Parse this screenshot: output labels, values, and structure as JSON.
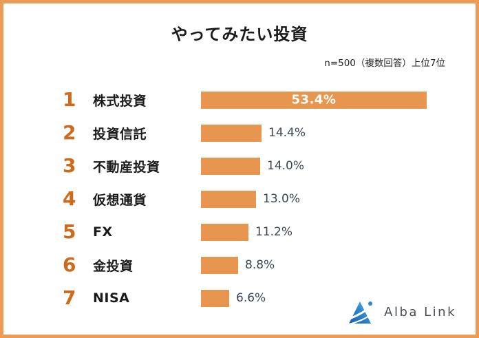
{
  "frame": {
    "border_color": "#EB9B55",
    "background": "#FFFFFF"
  },
  "header": {
    "title": "やってみたい投資",
    "note": "n=500（複数回答）上位7位"
  },
  "brand": {
    "name": "Alba Link",
    "logo_icon": "blue-triangle-swoosh",
    "logo_colors": {
      "dark_blue": "#1A5DAB",
      "light_blue": "#4AA8E8"
    }
  },
  "chart_data": {
    "type": "bar",
    "orientation": "horizontal",
    "title": "やってみたい投資",
    "subtitle": "n=500（複数回答）上位7位",
    "unit": "%",
    "grid": false,
    "legend": false,
    "xlim": [
      0,
      55
    ],
    "categories": [
      "株式投資",
      "投資信託",
      "不動産投資",
      "仮想通貨",
      "FX",
      "金投資",
      "NISA"
    ],
    "values": [
      53.4,
      14.4,
      14.0,
      13.0,
      11.2,
      8.8,
      6.6
    ],
    "bar_color": "#E8964F",
    "rank_color": "#CE6A1E",
    "value_color": "#3C4654",
    "value_color_inside_bar": "#FFFFFF",
    "rows": [
      {
        "rank": "1",
        "label": "株式投資",
        "value": 53.4,
        "value_label": "53.4%"
      },
      {
        "rank": "2",
        "label": "投資信託",
        "value": 14.4,
        "value_label": "14.4%"
      },
      {
        "rank": "3",
        "label": "不動産投資",
        "value": 14.0,
        "value_label": "14.0%"
      },
      {
        "rank": "4",
        "label": "仮想通貨",
        "value": 13.0,
        "value_label": "13.0%"
      },
      {
        "rank": "5",
        "label": "FX",
        "value": 11.2,
        "value_label": "11.2%"
      },
      {
        "rank": "6",
        "label": "金投資",
        "value": 8.8,
        "value_label": "8.8%"
      },
      {
        "rank": "7",
        "label": "NISA",
        "value": 6.6,
        "value_label": "6.6%"
      }
    ]
  }
}
